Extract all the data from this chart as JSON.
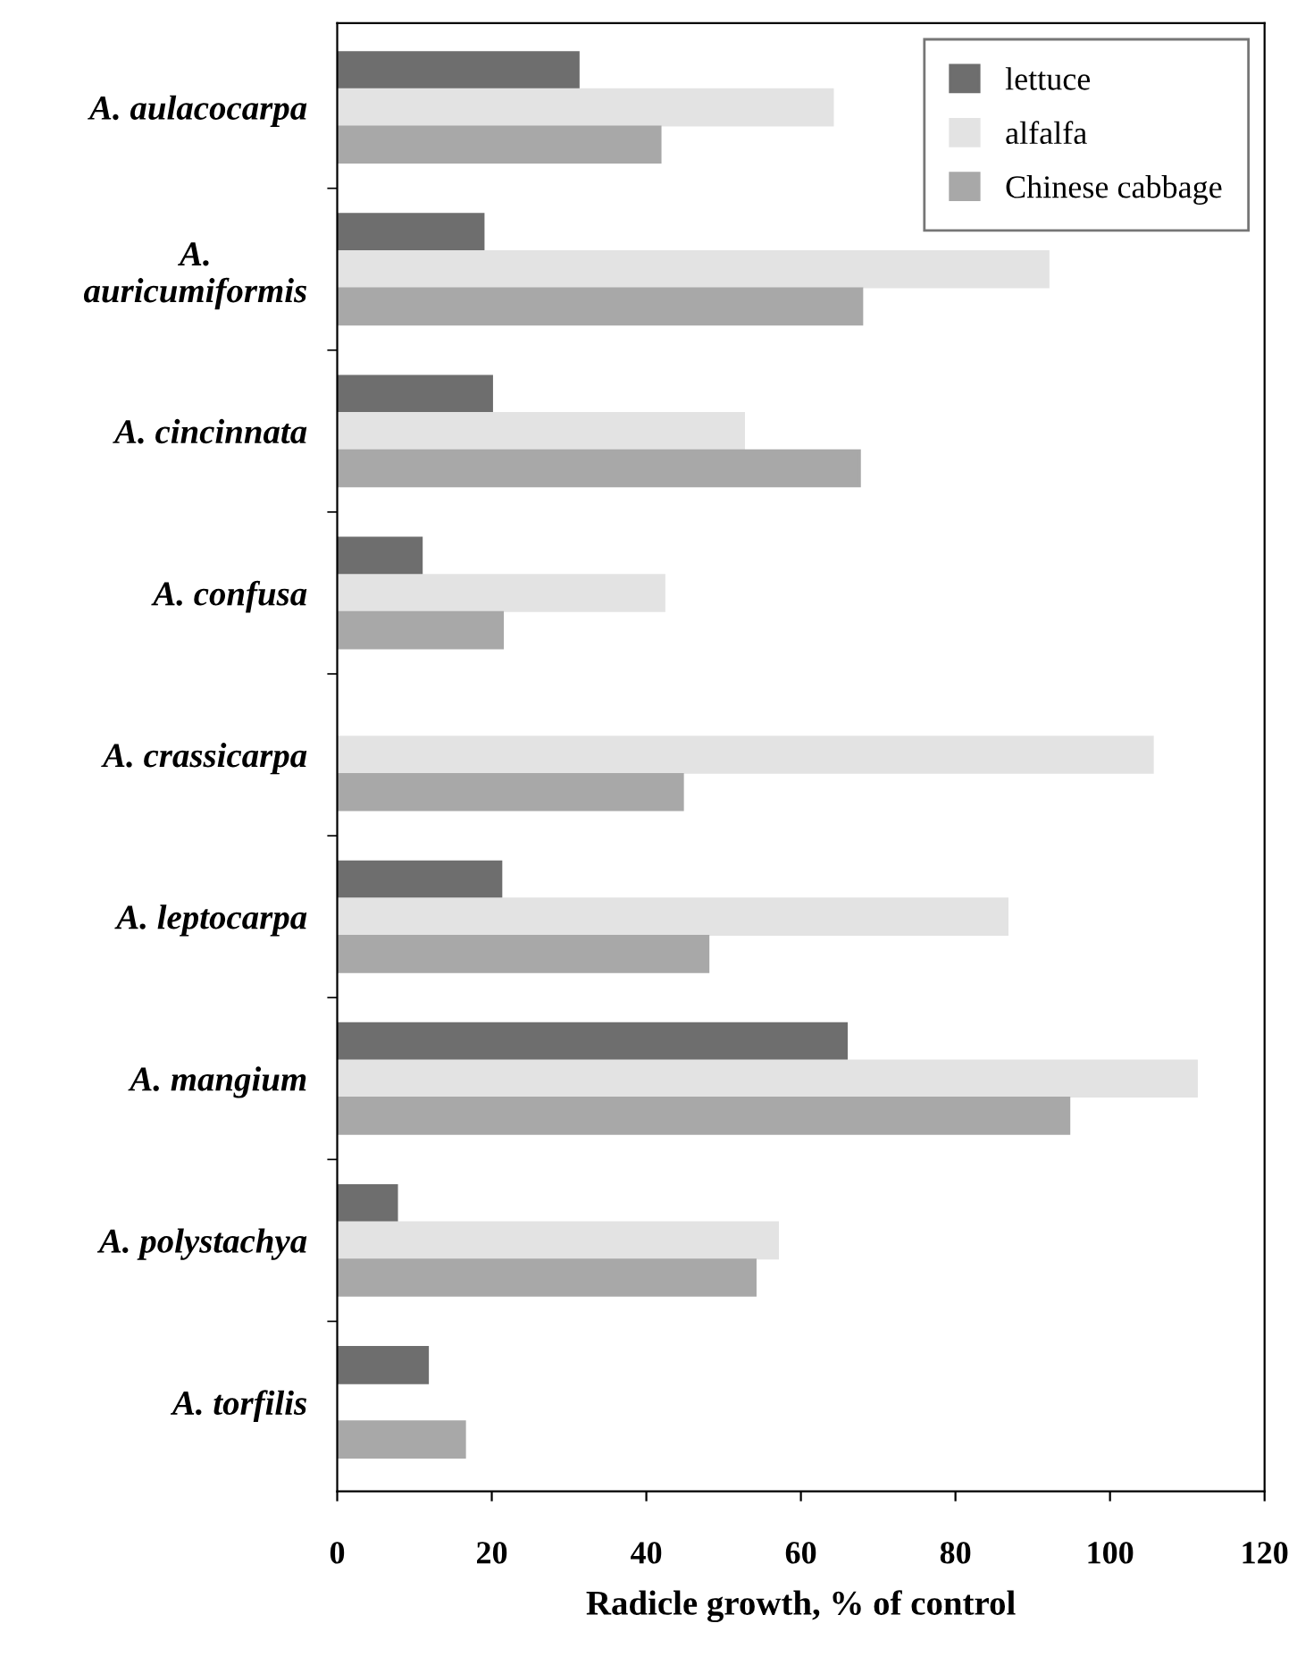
{
  "chart_data": {
    "type": "bar",
    "orientation": "horizontal",
    "xlabel": "Radicle growth, % of control",
    "categories": [
      "A. aulacocarpa",
      "A.\nauricumiformis",
      "A. cincinnata",
      "A. confusa",
      "A. crassicarpa",
      "A. leptocarpa",
      "A. mangium",
      "A. polystachya",
      "A. torfilis"
    ],
    "series": [
      {
        "name": "lettuce",
        "color": "#6e6e6e",
        "values": [
          31.2,
          18.9,
          20.0,
          10.9,
          null,
          21.2,
          65.9,
          7.7,
          11.7
        ]
      },
      {
        "name": "alfalfa",
        "color": "#e3e3e3",
        "values": [
          64.1,
          92.0,
          52.6,
          42.3,
          105.5,
          86.7,
          111.2,
          57.0,
          null
        ]
      },
      {
        "name": "Chinese cabbage",
        "color": "#a8a8a8",
        "values": [
          41.8,
          67.9,
          67.6,
          21.4,
          44.7,
          48.0,
          94.7,
          54.1,
          16.5
        ]
      }
    ],
    "xlim": [
      0,
      120
    ],
    "xticks": [
      0,
      20,
      40,
      60,
      80,
      100,
      120
    ],
    "grid": false,
    "legend": "top right"
  }
}
